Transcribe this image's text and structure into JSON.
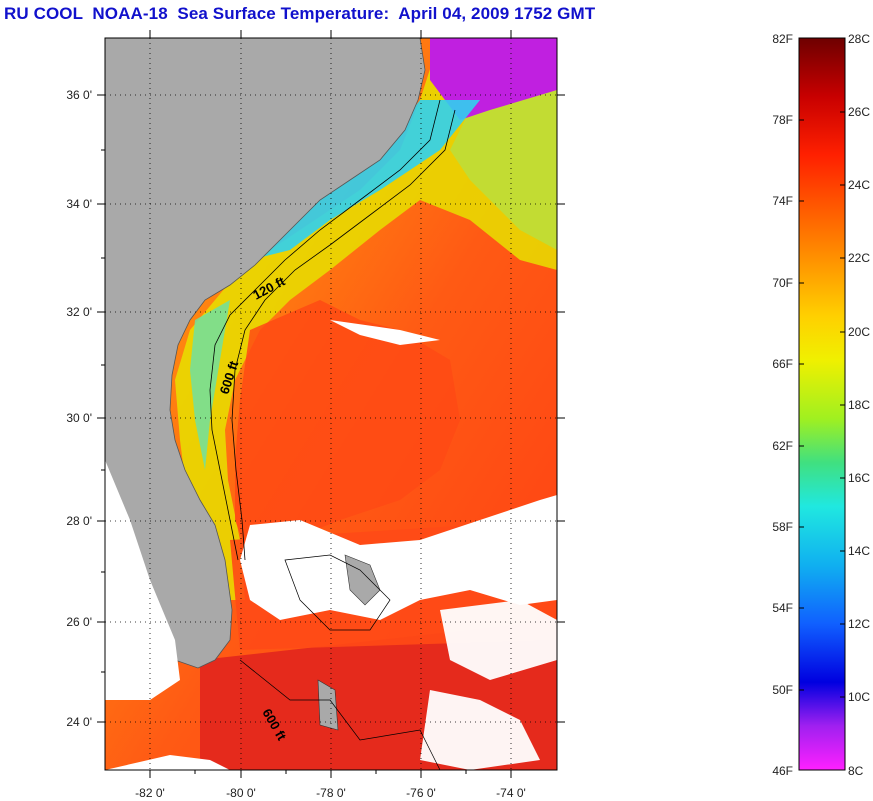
{
  "title": "RU COOL  NOAA-18  Sea Surface Temperature:  April 04, 2009 1752 GMT",
  "map": {
    "lon_ticks": [
      "-82 0'",
      "-80 0'",
      "-78 0'",
      "-76 0'",
      "-74 0'"
    ],
    "lat_ticks": [
      "36 0'",
      "34 0'",
      "32 0'",
      "30 0'",
      "28 0'",
      "26 0'",
      "24 0'"
    ],
    "contour_labels": [
      "120 ft",
      "600 ft",
      "600 ft"
    ],
    "colors": {
      "land": "#a9a9a9",
      "cloud": "#ffffff",
      "warm": "#e8251a",
      "gulfstream": "#ff5a14",
      "shelf": "#60d8ff"
    }
  },
  "colorbar": {
    "fahrenheit_labels": [
      "82F",
      "78F",
      "74F",
      "70F",
      "66F",
      "62F",
      "58F",
      "54F",
      "50F",
      "46F"
    ],
    "celsius_labels": [
      "28C",
      "26C",
      "24C",
      "22C",
      "20C",
      "18C",
      "16C",
      "14C",
      "12C",
      "10C",
      "8C"
    ]
  }
}
